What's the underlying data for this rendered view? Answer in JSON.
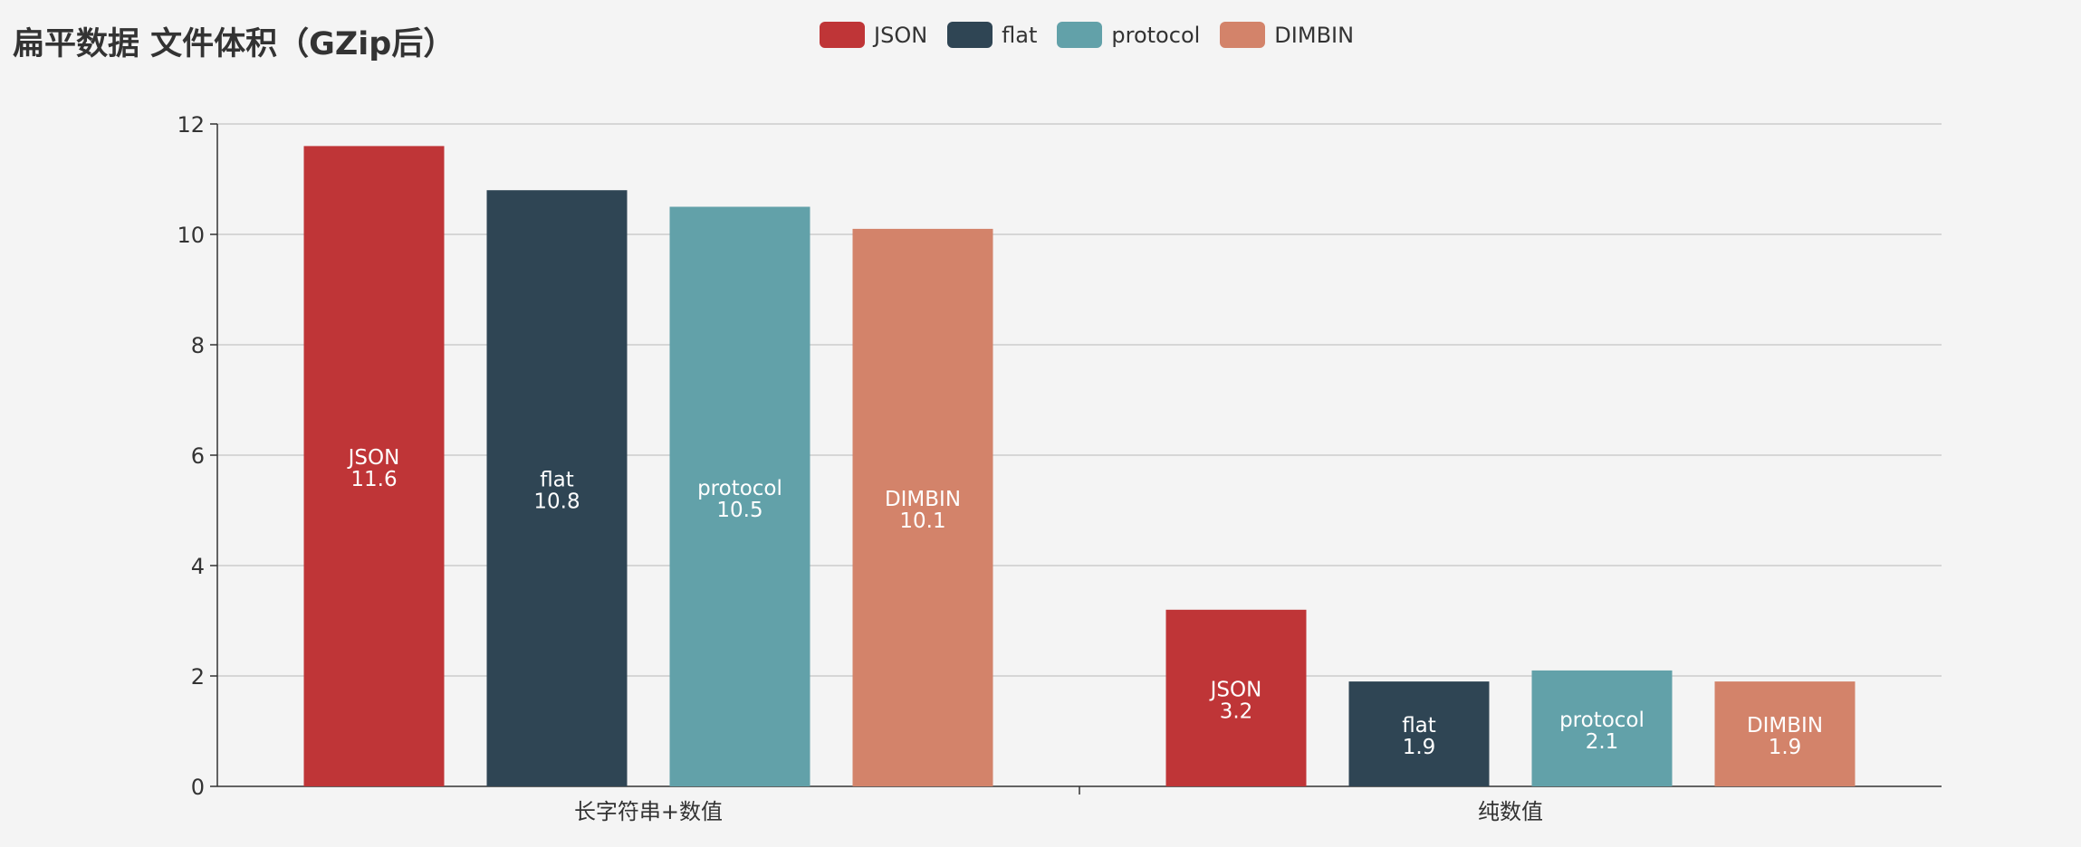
{
  "chart_data": {
    "type": "bar",
    "title": "扁平数据 文件体积（GZip后）",
    "categories": [
      "长字符串+数值",
      "纯数值"
    ],
    "series": [
      {
        "name": "JSON",
        "color": "#bf3537",
        "values": [
          11.6,
          3.2
        ]
      },
      {
        "name": "flat",
        "color": "#2f4554",
        "values": [
          10.8,
          1.9
        ]
      },
      {
        "name": "protocol",
        "color": "#62a1a9",
        "values": [
          10.5,
          2.1
        ]
      },
      {
        "name": "DIMBIN",
        "color": "#d3836a",
        "values": [
          10.1,
          1.9
        ]
      }
    ],
    "ylim": [
      0,
      12
    ],
    "yticks": [
      0,
      2,
      4,
      6,
      8,
      10,
      12
    ],
    "grid": true,
    "legend_position": "top-center",
    "xlabel": "",
    "ylabel": ""
  }
}
